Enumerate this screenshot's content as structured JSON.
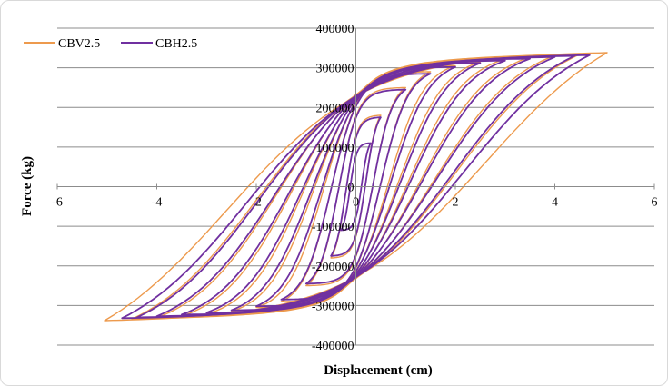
{
  "chart_data": {
    "type": "line",
    "xlabel": "Displacement (cm)",
    "ylabel": "Force (kg)",
    "xlim": [
      -6,
      6
    ],
    "ylim": [
      -400000,
      400000
    ],
    "x_ticks": [
      -6,
      -4,
      -2,
      0,
      2,
      4,
      6
    ],
    "y_ticks": [
      400000,
      300000,
      200000,
      100000,
      0,
      -100000,
      -200000,
      -300000,
      -400000
    ],
    "x_tick_labels": [
      "-6",
      "-4",
      "-2",
      "0",
      "2",
      "4",
      "6"
    ],
    "y_tick_labels": [
      "400000",
      "300000",
      "200000",
      "100000",
      "0",
      "-100000",
      "-200000",
      "-300000",
      "-400000"
    ],
    "grid": "horizontal",
    "legend_position": "top-left",
    "legend": [
      "CBV2.5",
      "CBH2.5"
    ],
    "series": [
      {
        "name": "CBV2.5",
        "color": "#ed9a4d",
        "loops": [
          {
            "amp": 0.5,
            "peak": 180000,
            "x0": 0.2
          },
          {
            "amp": 1.0,
            "peak": 250000,
            "x0": 0.35
          },
          {
            "amp": 1.5,
            "peak": 290000,
            "x0": 0.5
          },
          {
            "amp": 2.0,
            "peak": 305000,
            "x0": 0.65
          },
          {
            "amp": 2.5,
            "peak": 315000,
            "x0": 0.85
          },
          {
            "amp": 3.0,
            "peak": 322000,
            "x0": 1.05
          },
          {
            "amp": 3.5,
            "peak": 327000,
            "x0": 1.3
          },
          {
            "amp": 4.0,
            "peak": 331000,
            "x0": 1.6
          },
          {
            "amp": 4.5,
            "peak": 334000,
            "x0": 2.0
          },
          {
            "amp": 5.05,
            "peak": 338000,
            "x0": 2.6
          }
        ]
      },
      {
        "name": "CBH2.5",
        "color": "#7030a0",
        "loops": [
          {
            "amp": 0.3,
            "peak": 110000,
            "x0": 0.12
          },
          {
            "amp": 0.5,
            "peak": 175000,
            "x0": 0.2
          },
          {
            "amp": 1.0,
            "peak": 245000,
            "x0": 0.35
          },
          {
            "amp": 1.5,
            "peak": 285000,
            "x0": 0.5
          },
          {
            "amp": 2.0,
            "peak": 302000,
            "x0": 0.7
          },
          {
            "amp": 2.5,
            "peak": 312000,
            "x0": 0.9
          },
          {
            "amp": 3.0,
            "peak": 318000,
            "x0": 1.1
          },
          {
            "amp": 3.5,
            "peak": 323000,
            "x0": 1.35
          },
          {
            "amp": 4.0,
            "peak": 327000,
            "x0": 1.65
          },
          {
            "amp": 4.4,
            "peak": 330000,
            "x0": 1.95
          },
          {
            "amp": 4.7,
            "peak": 332000,
            "x0": 2.2
          }
        ]
      }
    ]
  }
}
